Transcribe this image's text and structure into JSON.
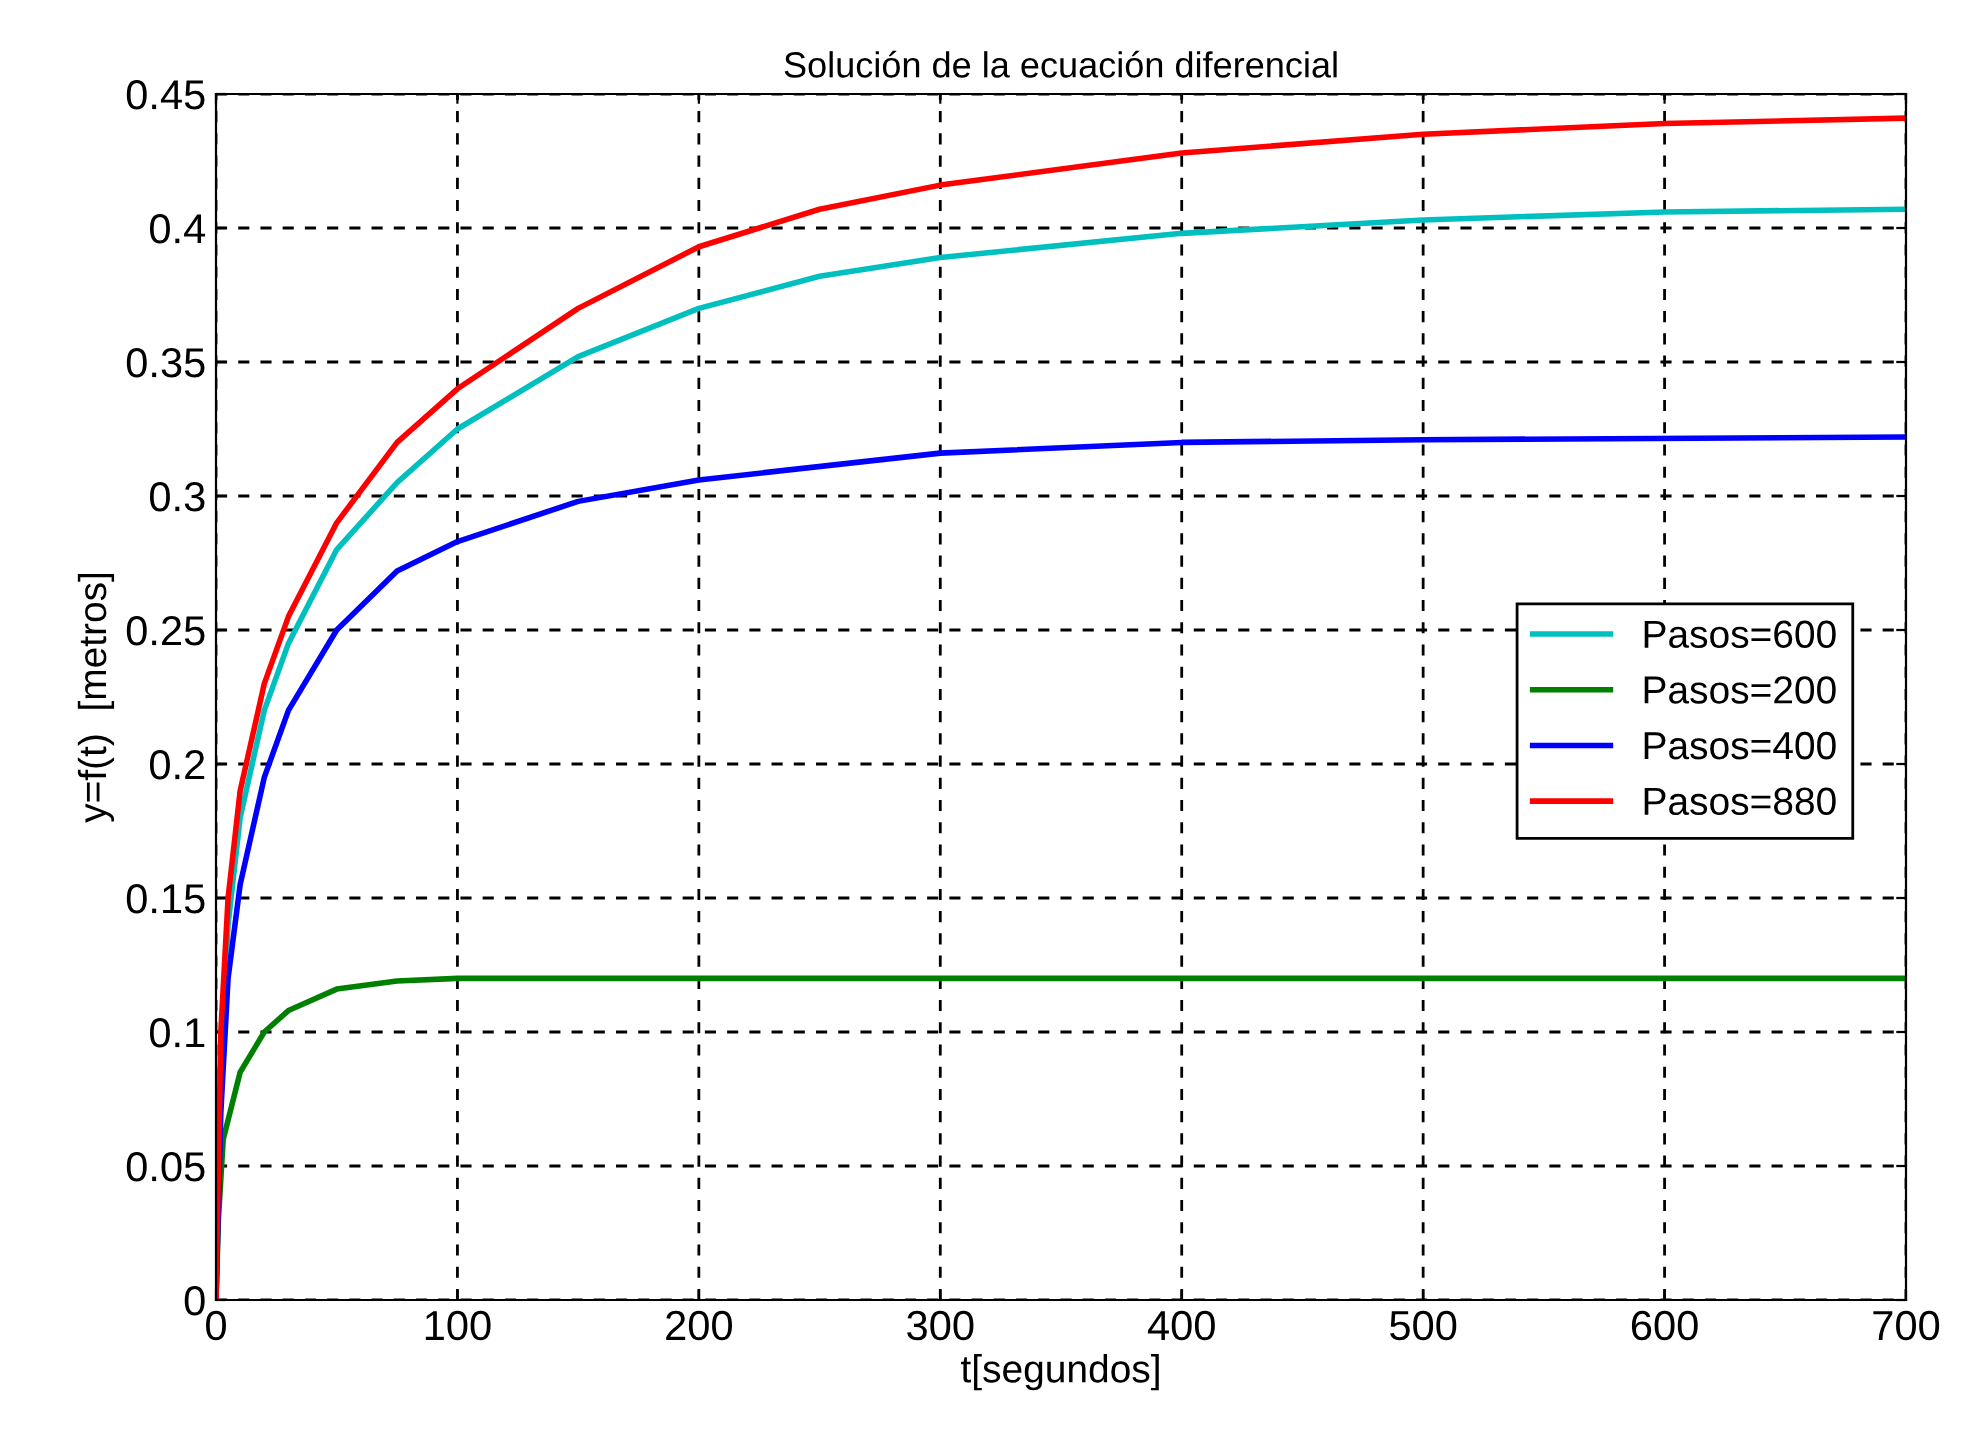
{
  "chart_data": {
    "type": "line",
    "title": "Solución de la ecuación diferencial",
    "xlabel": "t[segundos]",
    "ylabel": "y=f(t)  [metros]",
    "xlim": [
      0,
      700
    ],
    "xticks": [
      0,
      100,
      200,
      300,
      400,
      500,
      600,
      700
    ],
    "ylim": [
      0,
      0.45
    ],
    "yticks": [
      0,
      0.05,
      0.1,
      0.15,
      0.2,
      0.25,
      0.3,
      0.35,
      0.4,
      0.45
    ],
    "grid": true,
    "legend": "center right",
    "marker": "none",
    "line_style": "solid",
    "series": [
      {
        "name": "Pasos=600",
        "color": "#00bfbf",
        "x": [
          0,
          2,
          5,
          10,
          20,
          30,
          50,
          75,
          100,
          150,
          200,
          250,
          300,
          400,
          500,
          600,
          700
        ],
        "values": [
          0,
          0.09,
          0.14,
          0.18,
          0.22,
          0.245,
          0.28,
          0.305,
          0.325,
          0.352,
          0.37,
          0.382,
          0.389,
          0.398,
          0.403,
          0.406,
          0.407
        ]
      },
      {
        "name": "Pasos=200",
        "color": "#008000",
        "x": [
          0,
          1,
          3,
          10,
          20,
          30,
          50,
          75,
          100,
          700
        ],
        "values": [
          0,
          0.03,
          0.06,
          0.085,
          0.1,
          0.108,
          0.116,
          0.119,
          0.12,
          0.12
        ]
      },
      {
        "name": "Pasos=400",
        "color": "#0000ff",
        "x": [
          0,
          2,
          5,
          10,
          20,
          30,
          50,
          75,
          100,
          150,
          200,
          300,
          400,
          500,
          700
        ],
        "values": [
          0,
          0.07,
          0.12,
          0.155,
          0.195,
          0.22,
          0.25,
          0.272,
          0.283,
          0.298,
          0.306,
          0.316,
          0.32,
          0.321,
          0.322
        ]
      },
      {
        "name": "Pasos=880",
        "color": "#ff0000",
        "x": [
          0,
          2,
          5,
          10,
          20,
          30,
          50,
          75,
          100,
          150,
          200,
          250,
          300,
          400,
          500,
          600,
          700
        ],
        "values": [
          0,
          0.1,
          0.15,
          0.19,
          0.23,
          0.255,
          0.29,
          0.32,
          0.34,
          0.37,
          0.393,
          0.407,
          0.416,
          0.428,
          0.435,
          0.439,
          0.441
        ]
      }
    ]
  }
}
